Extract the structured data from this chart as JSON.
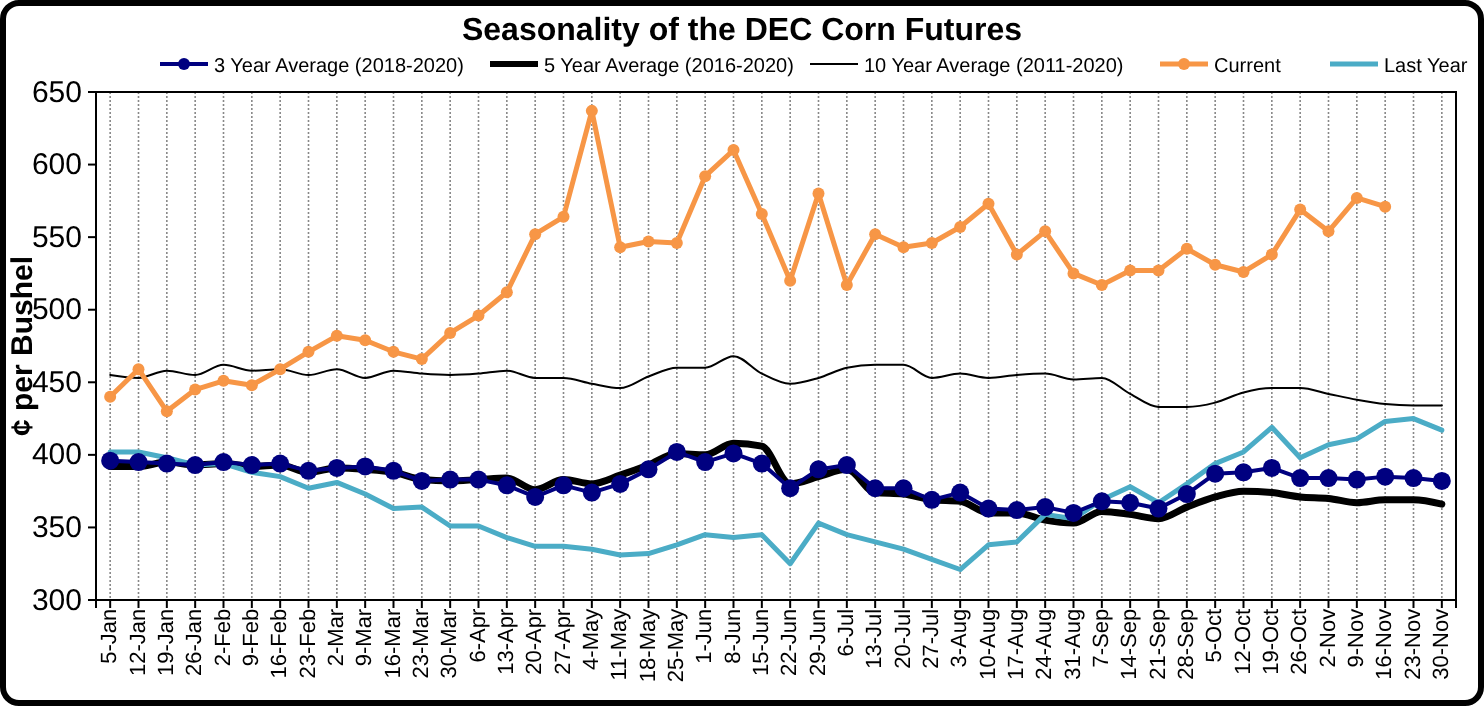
{
  "chart_data": {
    "type": "line",
    "title": "Seasonality  of the DEC Corn Futures",
    "ylabel": "¢ per Bushel",
    "categories": [
      "5-Jan",
      "12-Jan",
      "19-Jan",
      "26-Jan",
      "2-Feb",
      "9-Feb",
      "16-Feb",
      "23-Feb",
      "2-Mar",
      "9-Mar",
      "16-Mar",
      "23-Mar",
      "30-Mar",
      "6-Apr",
      "13-Apr",
      "20-Apr",
      "27-Apr",
      "4-May",
      "11-May",
      "18-May",
      "25-May",
      "1-Jun",
      "8-Jun",
      "15-Jun",
      "22-Jun",
      "29-Jun",
      "6-Jul",
      "13-Jul",
      "20-Jul",
      "27-Jul",
      "3-Aug",
      "10-Aug",
      "17-Aug",
      "24-Aug",
      "31-Aug",
      "7-Sep",
      "14-Sep",
      "21-Sep",
      "28-Sep",
      "5-Oct",
      "12-Oct",
      "19-Oct",
      "26-Oct",
      "2-Nov",
      "9-Nov",
      "16-Nov",
      "23-Nov",
      "30-Nov"
    ],
    "ylim": [
      300,
      650
    ],
    "yticks": [
      300,
      350,
      400,
      450,
      500,
      550,
      600,
      650
    ],
    "grid": "x",
    "legend": "top",
    "series": [
      {
        "name": "3 Year Average (2018-2020)",
        "color": "#000080",
        "marker": "circle",
        "values": [
          396,
          395,
          394,
          393,
          395,
          393,
          394,
          389,
          391,
          392,
          389,
          382,
          383,
          383,
          379,
          371,
          379,
          374,
          380,
          390,
          402,
          395,
          401,
          394,
          377,
          390,
          393,
          377,
          377,
          369,
          374,
          363,
          362,
          364,
          360,
          368,
          367,
          363,
          373,
          387,
          388,
          391,
          384,
          384,
          383,
          385,
          384,
          382
        ]
      },
      {
        "name": "5 Year Average (2016-2020)",
        "color": "#000000",
        "marker": "none",
        "values": [
          392,
          392,
          395,
          393,
          394,
          392,
          393,
          388,
          391,
          390,
          388,
          383,
          382,
          383,
          384,
          376,
          383,
          380,
          386,
          393,
          401,
          400,
          408,
          406,
          380,
          385,
          390,
          374,
          373,
          369,
          368,
          360,
          360,
          355,
          353,
          361,
          359,
          356,
          364,
          371,
          375,
          374,
          371,
          370,
          367,
          369,
          369,
          366
        ]
      },
      {
        "name": "10 Year Average (2011-2020)",
        "color": "#000000",
        "marker": "none",
        "values": [
          455,
          453,
          458,
          455,
          462,
          458,
          459,
          455,
          459,
          453,
          458,
          456,
          455,
          456,
          458,
          453,
          453,
          449,
          446,
          454,
          460,
          460,
          468,
          456,
          449,
          453,
          460,
          462,
          462,
          453,
          456,
          453,
          455,
          456,
          452,
          453,
          442,
          433,
          433,
          436,
          443,
          446,
          446,
          442,
          438,
          435,
          434,
          434
        ]
      },
      {
        "name": "Current",
        "color": "#f79646",
        "marker": "circle",
        "values": [
          440,
          459,
          430,
          445,
          451,
          448,
          459,
          471,
          482,
          479,
          471,
          466,
          484,
          496,
          512,
          552,
          564,
          637,
          543,
          547,
          546,
          592,
          610,
          566,
          520,
          580,
          517,
          552,
          543,
          546,
          557,
          573,
          538,
          554,
          525,
          517,
          527,
          527,
          542,
          531,
          526,
          538,
          569,
          554,
          577,
          571,
          null,
          null
        ]
      },
      {
        "name": "Last Year",
        "color": "#4bacc6",
        "marker": "none",
        "values": [
          402,
          402,
          398,
          393,
          394,
          388,
          385,
          377,
          381,
          373,
          363,
          364,
          351,
          351,
          343,
          337,
          337,
          335,
          331,
          332,
          338,
          345,
          343,
          345,
          325,
          353,
          345,
          340,
          335,
          328,
          321,
          338,
          340,
          359,
          356,
          369,
          378,
          367,
          380,
          394,
          402,
          419,
          398,
          407,
          411,
          423,
          425,
          417
        ]
      }
    ]
  }
}
